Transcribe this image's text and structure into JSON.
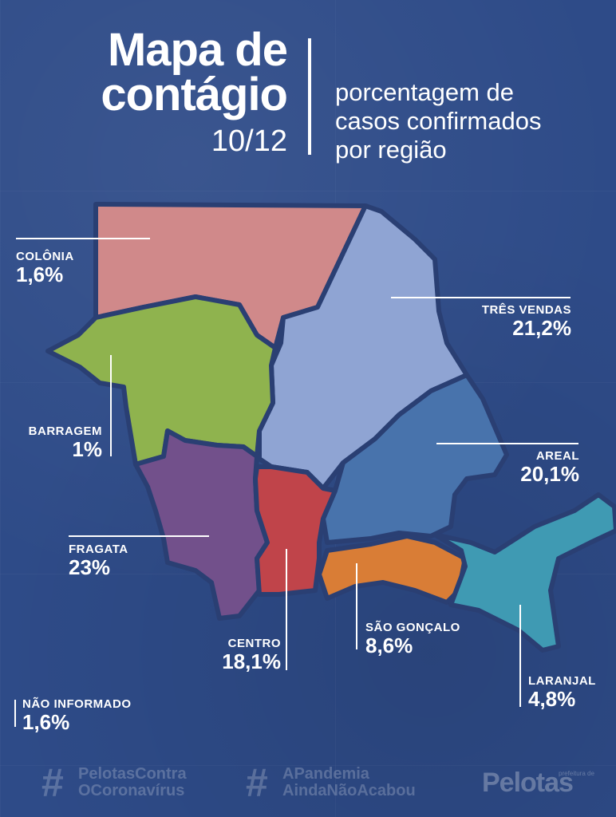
{
  "header": {
    "title_line1": "Mapa de",
    "title_line2": "contágio",
    "date": "10/12",
    "subtitle_lines": [
      "porcentagem de",
      "casos confirmados",
      "por região"
    ]
  },
  "regions": [
    {
      "id": "colonia",
      "name": "COLÔNIA",
      "pct": "1,6%",
      "color": "#d0898a"
    },
    {
      "id": "tres-vendas",
      "name": "TRÊS VENDAS",
      "pct": "21,2%",
      "color": "#8fa4d3"
    },
    {
      "id": "barragem",
      "name": "BARRAGEM",
      "pct": "1%",
      "color": "#8fb34e"
    },
    {
      "id": "areal",
      "name": "AREAL",
      "pct": "20,1%",
      "color": "#4873ac"
    },
    {
      "id": "fragata",
      "name": "FRAGATA",
      "pct": "23%",
      "color": "#72508b"
    },
    {
      "id": "centro",
      "name": "CENTRO",
      "pct": "18,1%",
      "color": "#c0444a"
    },
    {
      "id": "sao-goncalo",
      "name": "SÃO GONÇALO",
      "pct": "8,6%",
      "color": "#d97d36"
    },
    {
      "id": "laranjal",
      "name": "LARANJAL",
      "pct": "4,8%",
      "color": "#3f9ab3"
    },
    {
      "id": "nao-informado",
      "name": "NÃO INFORMADO",
      "pct": "1,6%",
      "color": ""
    }
  ],
  "footer": {
    "hashtag1_line1": "PelotasContra",
    "hashtag1_line2": "OCoronavírus",
    "hashtag2_line1": "APandemia",
    "hashtag2_line2": "AindaNãoAcabou",
    "hash_symbol": "#",
    "logo": "Pelotas",
    "logo_small": "prefeitura de"
  }
}
